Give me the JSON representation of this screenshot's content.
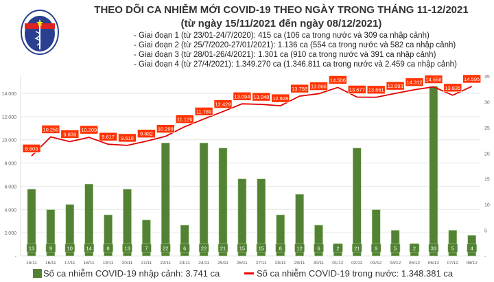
{
  "header": {
    "title": "THEO DÕI CA NHIỄM MỚI COVID-19 THEO NGÀY TRONG THÁNG 11-12/2021",
    "subtitle": "(từ ngày 15/11/2021 đến ngày 08/12/2021)",
    "notes": [
      "- Giai đoạn 1 (từ 23/01-24/7/2020): 415 ca (106 ca trong nước và 309 ca nhập cảnh)",
      "- Giai đoạn 2 (từ 25/7/2020-27/01/2021): 1.136 ca (554 ca trong nước và 582 ca nhập cảnh)",
      "- Giai đoạn 3 (từ 28/01-26/4/2021): 1.301 ca (910 ca trong nước và 391 ca nhập cảnh)",
      "- Giai đoạn 4 (từ 27/4/2021): 1.349.270 ca (1.346.811 ca trong nước và 2.459 ca nhập cảnh)"
    ],
    "logo_text": "BỘ Y TẾ"
  },
  "chart_data": {
    "type": "bar+line",
    "categories": [
      "15/11",
      "16/11",
      "17/11",
      "18/11",
      "19/11",
      "20/11",
      "21/11",
      "22/11",
      "23/11",
      "24/11",
      "25/11",
      "26/11",
      "27/11",
      "28/11",
      "29/11",
      "30/11",
      "01/12",
      "02/12",
      "03/12",
      "04/12",
      "05/12",
      "06/12",
      "07/12",
      "08/12"
    ],
    "series": [
      {
        "name": "Số ca nhiễm COVID-19 nhập cảnh: 3.741 ca",
        "type": "bar",
        "axis": "right",
        "color": "#548235",
        "values": [
          13,
          9,
          10,
          14,
          8,
          13,
          7,
          22,
          6,
          22,
          21,
          15,
          15,
          8,
          12,
          6,
          2,
          21,
          9,
          5,
          2,
          33,
          5,
          4
        ]
      },
      {
        "name": "Số ca nhiễm COVID-19 trong nước: 1.348.381 ca",
        "type": "line",
        "axis": "left",
        "color": "#e00000",
        "values": [
          8603,
          10250,
          9839,
          10209,
          9617,
          9518,
          9882,
          10299,
          11126,
          11789,
          12429,
          13094,
          13048,
          12928,
          13758,
          13966,
          14506,
          13677,
          13661,
          13993,
          14312,
          14558,
          13835,
          14595
        ]
      }
    ],
    "left_axis": {
      "ylim": [
        0,
        14000
      ],
      "ticks": [
        "-",
        "2.000",
        "4.000",
        "6.000",
        "8.000",
        "10.000",
        "12.000",
        "14.000"
      ]
    },
    "right_axis": {
      "ylim": [
        0,
        35
      ],
      "ticks": [
        "-",
        "5",
        "10",
        "15",
        "20",
        "25",
        "30",
        "35"
      ]
    },
    "grid": true,
    "legend_placement": "bottom",
    "label_color": "#ff3300",
    "bar_label_color": "#548235"
  }
}
